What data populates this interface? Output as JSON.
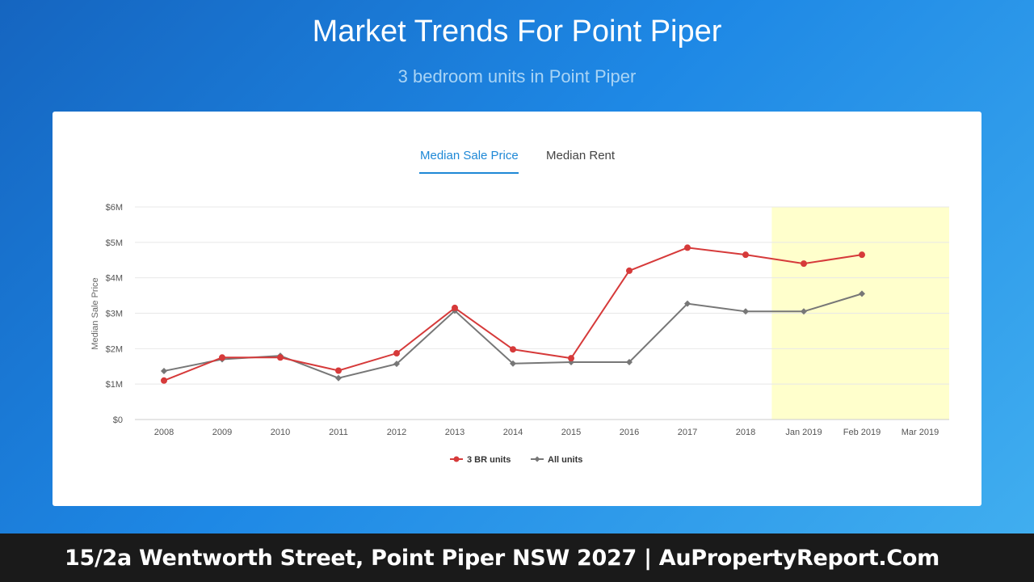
{
  "header": {
    "title": "Market Trends For Point Piper",
    "subtitle": "3 bedroom units in Point Piper"
  },
  "tabs": [
    {
      "label": "Median Sale Price",
      "active": true
    },
    {
      "label": "Median Rent",
      "active": false
    }
  ],
  "chart_data": {
    "type": "line",
    "ylabel": "Median Sale Price",
    "xlabel": "",
    "categories": [
      "2008",
      "2009",
      "2010",
      "2011",
      "2012",
      "2013",
      "2014",
      "2015",
      "2016",
      "2017",
      "2018",
      "Jan 2019",
      "Feb 2019",
      "Mar 2019"
    ],
    "ylim": [
      0,
      6000000
    ],
    "yticks": [
      "$0",
      "$1M",
      "$2M",
      "$3M",
      "$4M",
      "$5M",
      "$6M"
    ],
    "highlight_range": [
      "Jan 2019",
      "Mar 2019"
    ],
    "highlight_color": "#ffffcc",
    "grid": true,
    "legend_position": "bottom-center",
    "series": [
      {
        "name": "3 BR units",
        "color": "#d63a3a",
        "marker": "circle",
        "values": [
          1100000,
          1750000,
          1750000,
          1380000,
          1870000,
          3150000,
          1980000,
          1730000,
          4200000,
          4850000,
          4650000,
          4400000,
          4650000,
          null
        ]
      },
      {
        "name": "All units",
        "color": "#777777",
        "marker": "diamond",
        "values": [
          1370000,
          1700000,
          1800000,
          1170000,
          1570000,
          3070000,
          1580000,
          1620000,
          1620000,
          3270000,
          3050000,
          3050000,
          3550000,
          null
        ]
      }
    ]
  },
  "footer": {
    "text": "15/2a Wentworth Street, Point Piper NSW 2027 | AuPropertyReport.Com"
  }
}
